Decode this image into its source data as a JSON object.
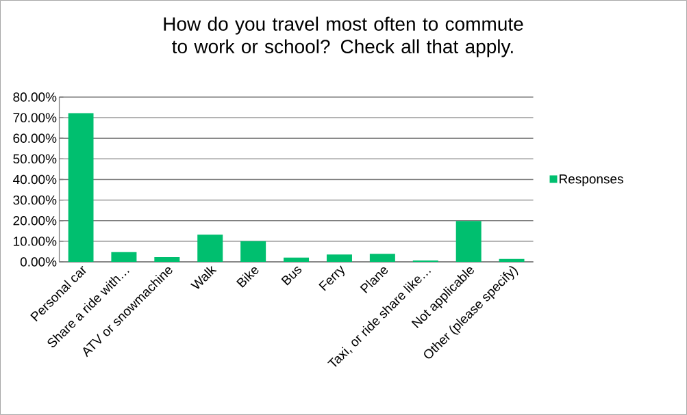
{
  "chart_data": {
    "type": "bar",
    "title": "How do you travel most often to commute to work or school? Check all that apply.",
    "categories": [
      "Personal car",
      "Share a ride with…",
      "ATV or snowmachine",
      "Walk",
      "Bike",
      "Bus",
      "Ferry",
      "Plane",
      "Taxi, or ride share like…",
      "Not applicable",
      "Other (please specify)"
    ],
    "series": [
      {
        "name": "Responses",
        "color": "#00bf6f",
        "values": [
          72.2,
          4.7,
          2.3,
          13.2,
          10.0,
          2.1,
          3.6,
          3.9,
          0.7,
          19.8,
          1.4
        ]
      }
    ],
    "ylim": [
      0,
      80
    ],
    "yticks": [
      {
        "value": 0,
        "label": "0.00%"
      },
      {
        "value": 10,
        "label": "10.00%"
      },
      {
        "value": 20,
        "label": "20.00%"
      },
      {
        "value": 30,
        "label": "30.00%"
      },
      {
        "value": 40,
        "label": "40.00%"
      },
      {
        "value": 50,
        "label": "50.00%"
      },
      {
        "value": 60,
        "label": "60.00%"
      },
      {
        "value": 70,
        "label": "70.00%"
      },
      {
        "value": 80,
        "label": "80.00%"
      }
    ],
    "grid": "y",
    "legend": "right"
  }
}
